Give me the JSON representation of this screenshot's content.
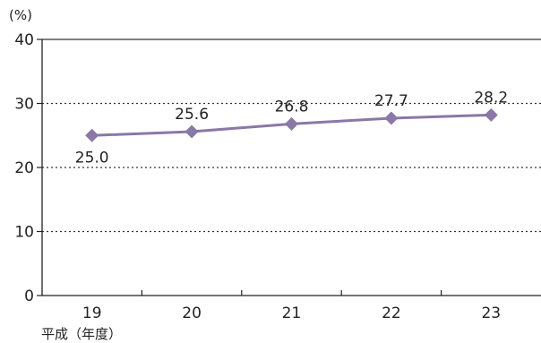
{
  "chart_data": {
    "type": "line",
    "x": [
      "19",
      "20",
      "21",
      "22",
      "23"
    ],
    "series": [
      {
        "values": [
          25.0,
          25.6,
          26.8,
          27.7,
          28.2
        ],
        "labels": [
          "25.0",
          "25.6",
          "26.8",
          "27.7",
          "28.2"
        ]
      }
    ],
    "ylim": [
      0,
      40
    ],
    "yticks": [
      "0",
      "10",
      "20",
      "30",
      "40"
    ],
    "ylabel": "(%)",
    "xlabel": "平成（年度）",
    "grid": "horizontal dotted",
    "colors": {
      "line": "#8a78a8",
      "marker": "#8a78a8",
      "axis": "#222222",
      "grid": "#333333"
    },
    "marker": "diamond"
  }
}
